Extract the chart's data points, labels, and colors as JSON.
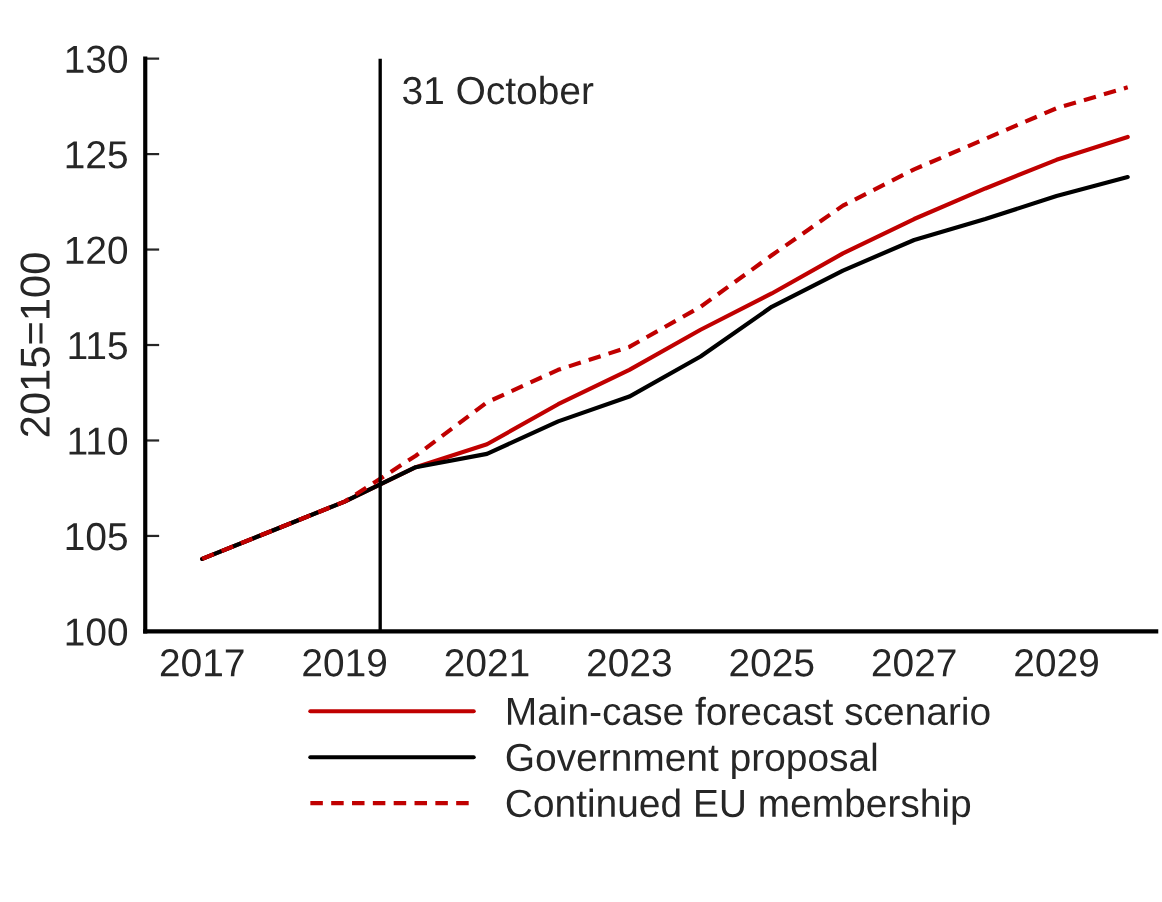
{
  "chart_data": {
    "type": "line",
    "ylabel": "2015=100",
    "x": [
      2017,
      2018,
      2019,
      2020,
      2021,
      2022,
      2023,
      2024,
      2025,
      2026,
      2027,
      2028,
      2029,
      2030
    ],
    "xlim": [
      2016.2,
      2030.4
    ],
    "xticks": [
      2017,
      2019,
      2021,
      2023,
      2025,
      2027,
      2029
    ],
    "ylim": [
      100,
      130
    ],
    "yticks": [
      100,
      105,
      110,
      115,
      120,
      125,
      130
    ],
    "grid": false,
    "legend": "bottom",
    "series": [
      {
        "name": "Main-case forecast scenario",
        "color": "#c00000",
        "line_style": "solid",
        "values": [
          103.8,
          105.3,
          106.8,
          108.6,
          109.8,
          111.9,
          113.7,
          115.8,
          117.7,
          119.8,
          121.6,
          123.2,
          124.7,
          125.9
        ]
      },
      {
        "name": "Government proposal",
        "color": "#000000",
        "line_style": "solid",
        "values": [
          103.8,
          105.3,
          106.8,
          108.6,
          109.3,
          111.0,
          112.3,
          114.4,
          117.0,
          118.9,
          120.5,
          121.6,
          122.8,
          123.8
        ]
      },
      {
        "name": "Continued EU membership",
        "color": "#c00000",
        "line_style": "dashed",
        "values": [
          103.8,
          105.3,
          106.8,
          109.2,
          112.0,
          113.7,
          114.9,
          117.0,
          119.7,
          122.3,
          124.2,
          125.8,
          127.4,
          128.5
        ]
      }
    ],
    "ref_lines": [
      {
        "axis": "x",
        "value": 2019.5,
        "label": "31 October",
        "color": "#000000"
      }
    ]
  }
}
